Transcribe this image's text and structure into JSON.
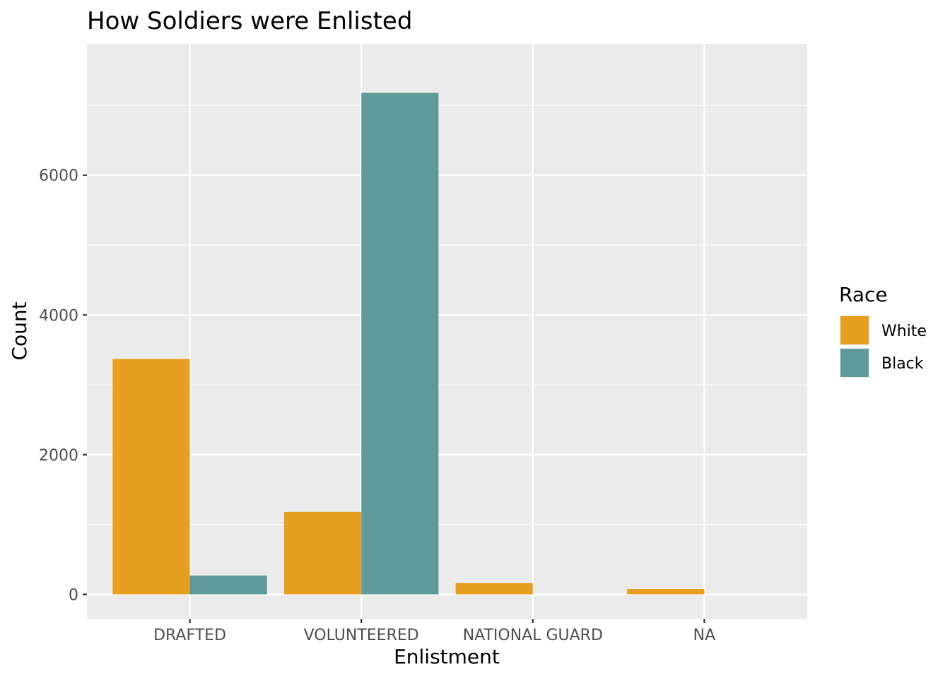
{
  "chart_data": {
    "type": "bar",
    "title": "How Soldiers were Enlisted",
    "xlabel": "Enlistment",
    "ylabel": "Count",
    "categories": [
      "DRAFTED",
      "VOLUNTEERED",
      "NATIONAL GUARD",
      "NA"
    ],
    "series": [
      {
        "name": "White",
        "color": "#E69F1F",
        "values": [
          3370,
          1180,
          165,
          75
        ]
      },
      {
        "name": "Black",
        "color": "#5F9A9A",
        "values": [
          270,
          7180,
          0,
          0
        ]
      }
    ],
    "ylim": [
      -350,
      7880
    ],
    "yticks": [
      0,
      2000,
      4000,
      6000
    ],
    "ytick_labels": [
      "0",
      "2000",
      "4000",
      "6000"
    ],
    "grid": true,
    "panel_background": "#EBEBEB",
    "legend": {
      "title": "Race",
      "position": "right"
    }
  }
}
